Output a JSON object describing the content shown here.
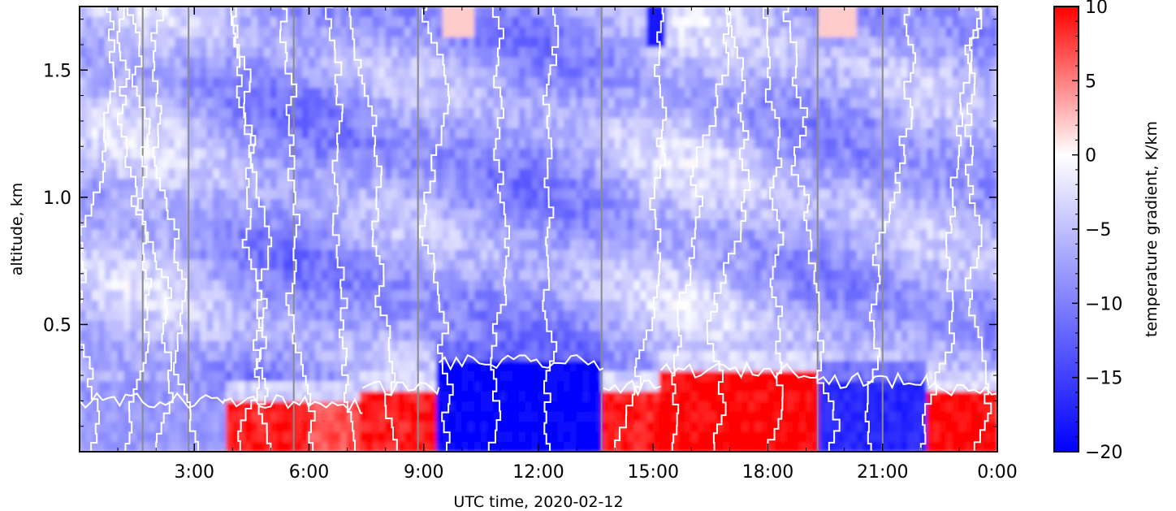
{
  "chart_data": {
    "type": "heatmap",
    "title_partial": "",
    "xlabel": "UTC time,  2020-02-12",
    "ylabel": "altitude, km",
    "xlim_hours": [
      0,
      24
    ],
    "ylim_km": [
      0.0,
      1.75
    ],
    "x_tick_labels": [
      "3:00",
      "6:00",
      "9:00",
      "12:00",
      "15:00",
      "18:00",
      "21:00",
      "0:00"
    ],
    "x_tick_hours": [
      3,
      6,
      9,
      12,
      15,
      18,
      21,
      24
    ],
    "y_tick_labels": [
      "0.5",
      "1.0",
      "1.5"
    ],
    "y_tick_values": [
      0.5,
      1.0,
      1.5
    ],
    "colorbar": {
      "label": "temperature gradient, K/km",
      "range": [
        -20,
        10
      ],
      "tick_labels": [
        "10",
        "5",
        "0",
        "−5",
        "−10",
        "−15",
        "−20"
      ],
      "tick_values": [
        10,
        5,
        0,
        -5,
        -10,
        -15,
        -20
      ],
      "colormap": "bwr",
      "colors": {
        "low": "#0000ff",
        "mid": "#ffffff",
        "high": "#ff0000"
      }
    },
    "vertical_lines_hours": [
      1.65,
      2.85,
      5.6,
      8.85,
      13.65,
      19.3,
      21.0
    ],
    "contour_level": 0,
    "surface_layer": {
      "description_hours": [
        {
          "start": 0.0,
          "end": 3.8,
          "gradient": -8,
          "top_km": 0.2
        },
        {
          "start": 3.8,
          "end": 6.0,
          "gradient": 9,
          "top_km": 0.2
        },
        {
          "start": 6.0,
          "end": 7.4,
          "gradient": 7,
          "top_km": 0.18
        },
        {
          "start": 7.4,
          "end": 9.4,
          "gradient": 9,
          "top_km": 0.25
        },
        {
          "start": 9.4,
          "end": 13.7,
          "gradient": -20,
          "top_km": 0.35
        },
        {
          "start": 13.7,
          "end": 15.2,
          "gradient": 9,
          "top_km": 0.25
        },
        {
          "start": 15.2,
          "end": 19.3,
          "gradient": 10,
          "top_km": 0.32
        },
        {
          "start": 19.3,
          "end": 22.2,
          "gradient": -17,
          "top_km": 0.28
        },
        {
          "start": 22.2,
          "end": 24.0,
          "gradient": 10,
          "top_km": 0.25
        }
      ]
    }
  }
}
